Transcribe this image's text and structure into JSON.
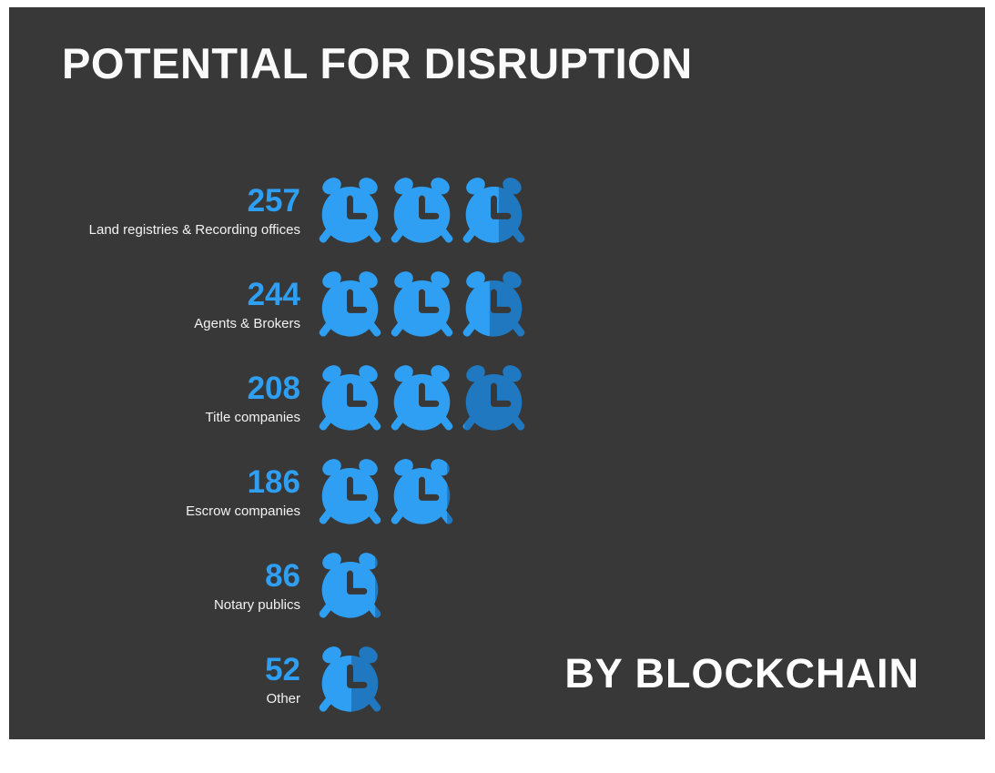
{
  "colors": {
    "background": "#383838",
    "accent": "#2e9ff2",
    "accent_dark": "#1f78c0",
    "text": "#ffffff"
  },
  "chart_data": {
    "type": "bar",
    "subtype": "pictogram",
    "icon": "alarm-clock-icon",
    "icon_unit": 100,
    "title": "POTENTIAL FOR DISRUPTION",
    "annotation": "BY BLOCKCHAIN",
    "categories": [
      "Land registries & Recording offices",
      "Agents & Brokers",
      "Title companies",
      "Escrow companies",
      "Notary publics",
      "Other"
    ],
    "values": [
      257,
      244,
      208,
      186,
      86,
      52
    ],
    "xlabel": "",
    "ylabel": "",
    "legend": "none",
    "grid": "off"
  }
}
